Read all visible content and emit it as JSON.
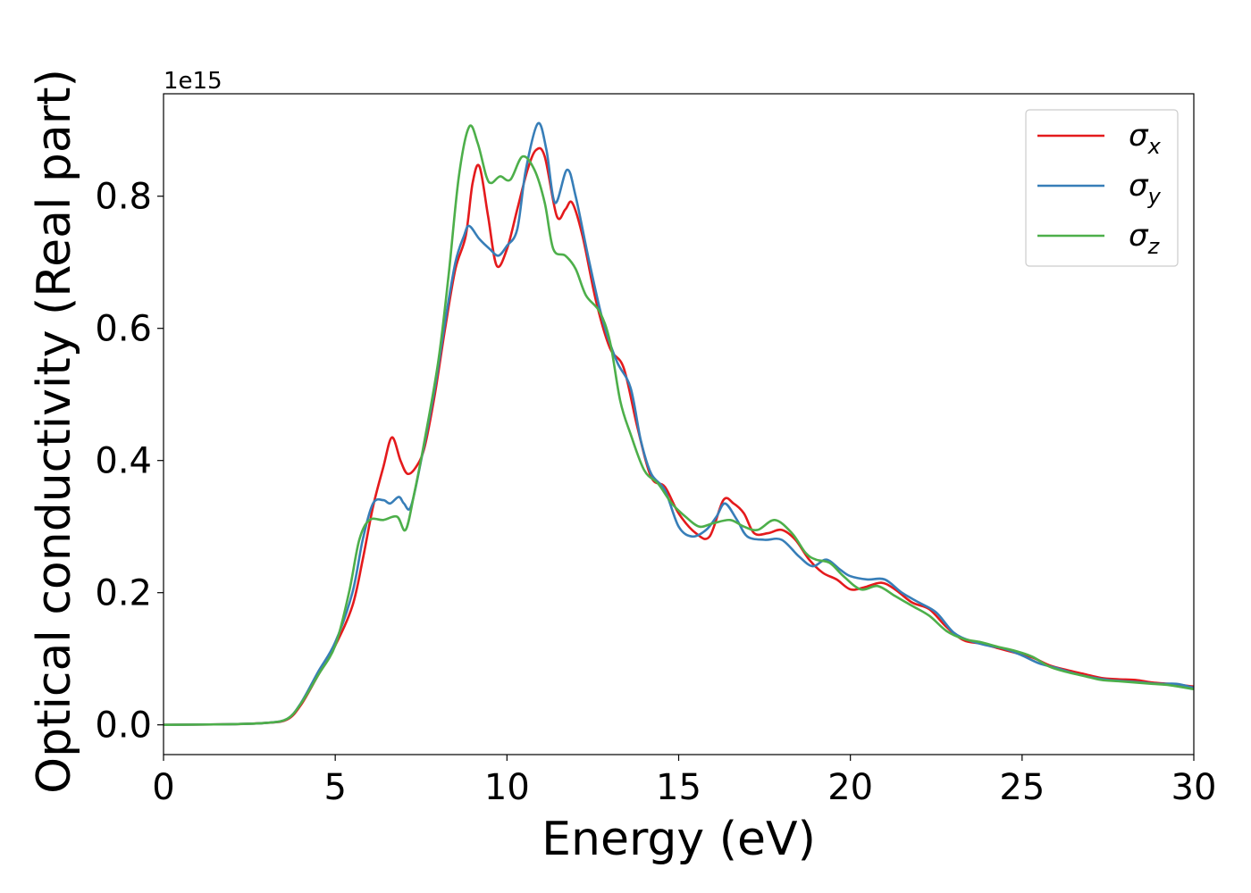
{
  "chart_data": {
    "type": "line",
    "title": "",
    "xlabel": "Energy (eV)",
    "ylabel": "Optical conductivity (Real part)",
    "y_offset_label": "1e15",
    "xlim": [
      0,
      30
    ],
    "ylim": [
      -0.045,
      0.955
    ],
    "x_ticks": [
      0,
      5,
      10,
      15,
      20,
      25,
      30
    ],
    "x_tick_labels": [
      "0",
      "5",
      "10",
      "15",
      "20",
      "25",
      "30"
    ],
    "y_ticks": [
      0.0,
      0.2,
      0.4,
      0.6,
      0.8
    ],
    "y_tick_labels": [
      "0.0",
      "0.2",
      "0.4",
      "0.6",
      "0.8"
    ],
    "grid": false,
    "legend_position": "upper right",
    "series": [
      {
        "name": "σx",
        "legend_base": "σ",
        "legend_sub": "x",
        "color": "#e41a1c",
        "points": [
          [
            0,
            0
          ],
          [
            2,
            0.001
          ],
          [
            3,
            0.003
          ],
          [
            3.6,
            0.008
          ],
          [
            4.0,
            0.03
          ],
          [
            4.5,
            0.075
          ],
          [
            5.0,
            0.12
          ],
          [
            5.5,
            0.18
          ],
          [
            5.8,
            0.25
          ],
          [
            6.1,
            0.33
          ],
          [
            6.4,
            0.39
          ],
          [
            6.65,
            0.435
          ],
          [
            6.9,
            0.4
          ],
          [
            7.1,
            0.38
          ],
          [
            7.35,
            0.39
          ],
          [
            7.6,
            0.42
          ],
          [
            7.9,
            0.5
          ],
          [
            8.2,
            0.6
          ],
          [
            8.5,
            0.69
          ],
          [
            8.8,
            0.74
          ],
          [
            9.0,
            0.82
          ],
          [
            9.2,
            0.845
          ],
          [
            9.45,
            0.77
          ],
          [
            9.7,
            0.695
          ],
          [
            10.0,
            0.72
          ],
          [
            10.3,
            0.78
          ],
          [
            10.6,
            0.84
          ],
          [
            10.85,
            0.87
          ],
          [
            11.1,
            0.86
          ],
          [
            11.45,
            0.77
          ],
          [
            11.7,
            0.78
          ],
          [
            11.9,
            0.79
          ],
          [
            12.2,
            0.74
          ],
          [
            12.6,
            0.64
          ],
          [
            13.0,
            0.57
          ],
          [
            13.4,
            0.54
          ],
          [
            13.8,
            0.45
          ],
          [
            14.2,
            0.375
          ],
          [
            14.6,
            0.36
          ],
          [
            15.0,
            0.32
          ],
          [
            15.5,
            0.29
          ],
          [
            15.9,
            0.285
          ],
          [
            16.3,
            0.34
          ],
          [
            16.6,
            0.335
          ],
          [
            16.9,
            0.32
          ],
          [
            17.2,
            0.29
          ],
          [
            17.6,
            0.29
          ],
          [
            18.0,
            0.295
          ],
          [
            18.4,
            0.28
          ],
          [
            18.8,
            0.25
          ],
          [
            19.2,
            0.23
          ],
          [
            19.6,
            0.22
          ],
          [
            20.0,
            0.205
          ],
          [
            20.4,
            0.208
          ],
          [
            20.9,
            0.215
          ],
          [
            21.3,
            0.205
          ],
          [
            21.8,
            0.185
          ],
          [
            22.3,
            0.175
          ],
          [
            22.8,
            0.148
          ],
          [
            23.3,
            0.128
          ],
          [
            23.8,
            0.123
          ],
          [
            24.3,
            0.116
          ],
          [
            24.8,
            0.109
          ],
          [
            25.3,
            0.102
          ],
          [
            25.8,
            0.09
          ],
          [
            26.3,
            0.083
          ],
          [
            26.8,
            0.077
          ],
          [
            27.3,
            0.071
          ],
          [
            27.8,
            0.069
          ],
          [
            28.3,
            0.068
          ],
          [
            28.8,
            0.064
          ],
          [
            29.3,
            0.062
          ],
          [
            30,
            0.058
          ]
        ]
      },
      {
        "name": "σy",
        "legend_base": "σ",
        "legend_sub": "y",
        "color": "#377eb8",
        "points": [
          [
            0,
            0
          ],
          [
            2,
            0.001
          ],
          [
            3,
            0.003
          ],
          [
            3.6,
            0.009
          ],
          [
            4.0,
            0.033
          ],
          [
            4.5,
            0.08
          ],
          [
            5.0,
            0.125
          ],
          [
            5.5,
            0.2
          ],
          [
            5.8,
            0.28
          ],
          [
            6.1,
            0.335
          ],
          [
            6.4,
            0.34
          ],
          [
            6.6,
            0.335
          ],
          [
            6.85,
            0.345
          ],
          [
            7.0,
            0.335
          ],
          [
            7.2,
            0.33
          ],
          [
            7.5,
            0.4
          ],
          [
            7.9,
            0.51
          ],
          [
            8.2,
            0.61
          ],
          [
            8.5,
            0.7
          ],
          [
            8.75,
            0.74
          ],
          [
            8.9,
            0.755
          ],
          [
            9.2,
            0.735
          ],
          [
            9.5,
            0.72
          ],
          [
            9.75,
            0.71
          ],
          [
            10.0,
            0.725
          ],
          [
            10.3,
            0.75
          ],
          [
            10.55,
            0.84
          ],
          [
            10.9,
            0.91
          ],
          [
            11.15,
            0.87
          ],
          [
            11.4,
            0.79
          ],
          [
            11.75,
            0.84
          ],
          [
            12.0,
            0.8
          ],
          [
            12.4,
            0.7
          ],
          [
            12.8,
            0.61
          ],
          [
            13.2,
            0.55
          ],
          [
            13.6,
            0.51
          ],
          [
            13.9,
            0.43
          ],
          [
            14.2,
            0.38
          ],
          [
            14.6,
            0.355
          ],
          [
            15.0,
            0.3
          ],
          [
            15.4,
            0.285
          ],
          [
            15.8,
            0.295
          ],
          [
            16.1,
            0.315
          ],
          [
            16.35,
            0.335
          ],
          [
            16.7,
            0.31
          ],
          [
            17.0,
            0.285
          ],
          [
            17.5,
            0.28
          ],
          [
            18.0,
            0.28
          ],
          [
            18.5,
            0.255
          ],
          [
            18.9,
            0.24
          ],
          [
            19.3,
            0.25
          ],
          [
            19.7,
            0.235
          ],
          [
            20.0,
            0.225
          ],
          [
            20.5,
            0.22
          ],
          [
            21.0,
            0.22
          ],
          [
            21.5,
            0.2
          ],
          [
            22.0,
            0.185
          ],
          [
            22.5,
            0.17
          ],
          [
            23.0,
            0.14
          ],
          [
            23.5,
            0.127
          ],
          [
            24.0,
            0.12
          ],
          [
            24.5,
            0.115
          ],
          [
            25.0,
            0.105
          ],
          [
            25.5,
            0.093
          ],
          [
            26.0,
            0.086
          ],
          [
            26.5,
            0.078
          ],
          [
            27.0,
            0.072
          ],
          [
            27.5,
            0.068
          ],
          [
            28.0,
            0.066
          ],
          [
            28.5,
            0.064
          ],
          [
            29.0,
            0.062
          ],
          [
            29.5,
            0.062
          ],
          [
            30,
            0.056
          ]
        ]
      },
      {
        "name": "σz",
        "legend_base": "σ",
        "legend_sub": "z",
        "color": "#4daf4a",
        "points": [
          [
            0,
            0
          ],
          [
            2,
            0.001
          ],
          [
            3,
            0.003
          ],
          [
            3.6,
            0.009
          ],
          [
            4.0,
            0.032
          ],
          [
            4.5,
            0.075
          ],
          [
            5.0,
            0.12
          ],
          [
            5.4,
            0.2
          ],
          [
            5.7,
            0.28
          ],
          [
            6.0,
            0.31
          ],
          [
            6.4,
            0.31
          ],
          [
            6.8,
            0.315
          ],
          [
            7.05,
            0.295
          ],
          [
            7.3,
            0.35
          ],
          [
            7.6,
            0.43
          ],
          [
            8.0,
            0.55
          ],
          [
            8.3,
            0.68
          ],
          [
            8.6,
            0.83
          ],
          [
            8.9,
            0.905
          ],
          [
            9.15,
            0.88
          ],
          [
            9.4,
            0.83
          ],
          [
            9.55,
            0.82
          ],
          [
            9.8,
            0.83
          ],
          [
            10.1,
            0.825
          ],
          [
            10.45,
            0.86
          ],
          [
            10.8,
            0.84
          ],
          [
            11.1,
            0.79
          ],
          [
            11.35,
            0.72
          ],
          [
            11.7,
            0.71
          ],
          [
            12.0,
            0.69
          ],
          [
            12.3,
            0.65
          ],
          [
            12.7,
            0.625
          ],
          [
            13.0,
            0.58
          ],
          [
            13.3,
            0.49
          ],
          [
            13.6,
            0.44
          ],
          [
            14.0,
            0.385
          ],
          [
            14.4,
            0.365
          ],
          [
            14.8,
            0.335
          ],
          [
            15.2,
            0.315
          ],
          [
            15.6,
            0.3
          ],
          [
            16.0,
            0.305
          ],
          [
            16.5,
            0.31
          ],
          [
            16.9,
            0.3
          ],
          [
            17.3,
            0.295
          ],
          [
            17.8,
            0.31
          ],
          [
            18.3,
            0.29
          ],
          [
            18.7,
            0.26
          ],
          [
            19.0,
            0.25
          ],
          [
            19.4,
            0.245
          ],
          [
            19.8,
            0.225
          ],
          [
            20.3,
            0.205
          ],
          [
            20.8,
            0.21
          ],
          [
            21.3,
            0.195
          ],
          [
            21.8,
            0.18
          ],
          [
            22.3,
            0.165
          ],
          [
            22.8,
            0.142
          ],
          [
            23.3,
            0.13
          ],
          [
            23.8,
            0.125
          ],
          [
            24.3,
            0.118
          ],
          [
            24.8,
            0.112
          ],
          [
            25.3,
            0.103
          ],
          [
            25.8,
            0.088
          ],
          [
            26.3,
            0.08
          ],
          [
            26.8,
            0.074
          ],
          [
            27.3,
            0.068
          ],
          [
            27.8,
            0.066
          ],
          [
            28.3,
            0.064
          ],
          [
            28.8,
            0.062
          ],
          [
            29.3,
            0.06
          ],
          [
            30,
            0.054
          ]
        ]
      }
    ]
  }
}
